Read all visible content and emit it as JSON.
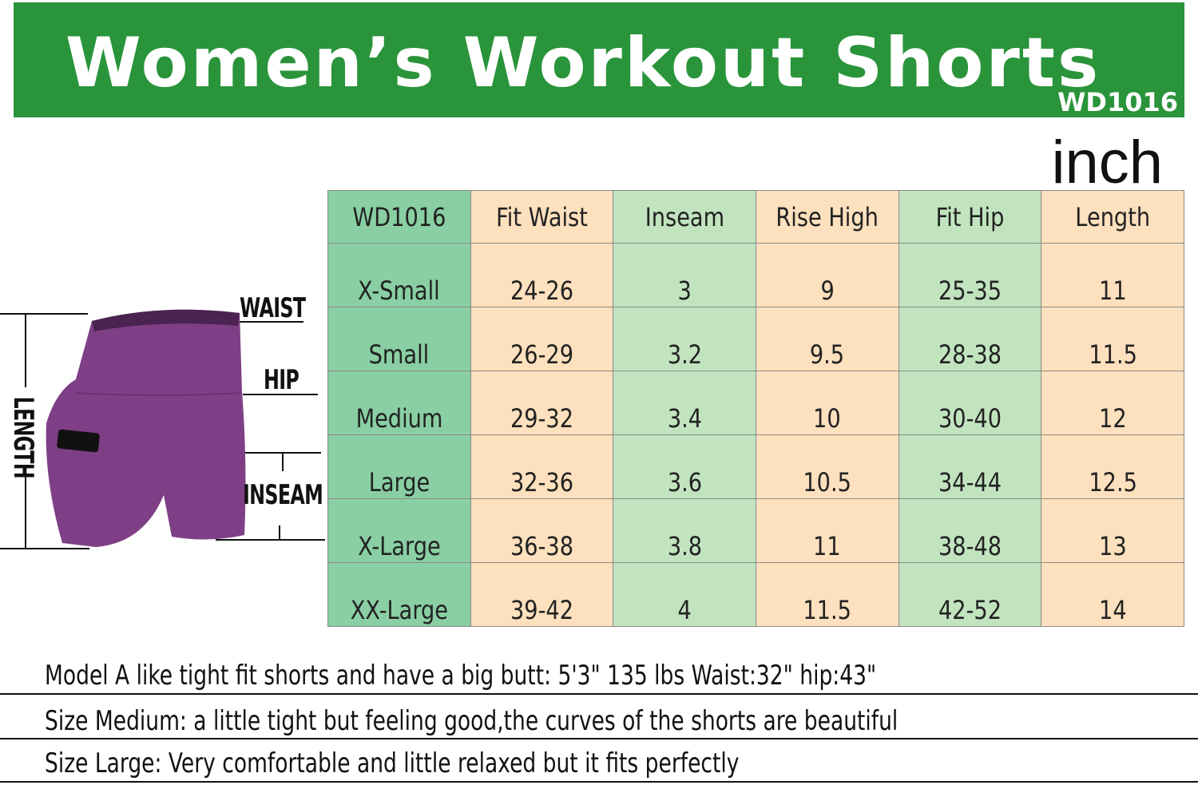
{
  "banner": {
    "title": "Women’s Workout Shorts",
    "code": "WD1016",
    "color": "#2a943b"
  },
  "unit": "inch",
  "diagram": {
    "labels": {
      "waist": "WAIST",
      "hip": "HIP",
      "inseam": "INSEAM",
      "length": "LENGTH"
    },
    "garment_color": "#7e3f86"
  },
  "table": {
    "headers": [
      "WD1016",
      "Fit Waist",
      "Inseam",
      "Rise High",
      "Fit Hip",
      "Length"
    ],
    "rows": [
      [
        "X-Small",
        "24-26",
        "3",
        "9",
        "25-35",
        "11"
      ],
      [
        "Small",
        "26-29",
        "3.2",
        "9.5",
        "28-38",
        "11.5"
      ],
      [
        "Medium",
        "29-32",
        "3.4",
        "10",
        "30-40",
        "12"
      ],
      [
        "Large",
        "32-36",
        "3.6",
        "10.5",
        "34-44",
        "12.5"
      ],
      [
        "X-Large",
        "36-38",
        "3.8",
        "11",
        "38-48",
        "13"
      ],
      [
        "XX-Large",
        "39-42",
        "4",
        "11.5",
        "42-52",
        "14"
      ]
    ],
    "colors": {
      "size_column": "#89cfa3",
      "green_column": "#c1e4bf",
      "peach_column": "#fde0bd"
    }
  },
  "notes": [
    "Model A like tight fit shorts and have a big butt:  5'3\"   135 lbs   Waist:32\"   hip:43\"",
    "Size  Medium: a little tight but feeling good,the curves of the shorts are beautiful",
    "Size Large: Very comfortable and little relaxed but it fits perfectly"
  ]
}
